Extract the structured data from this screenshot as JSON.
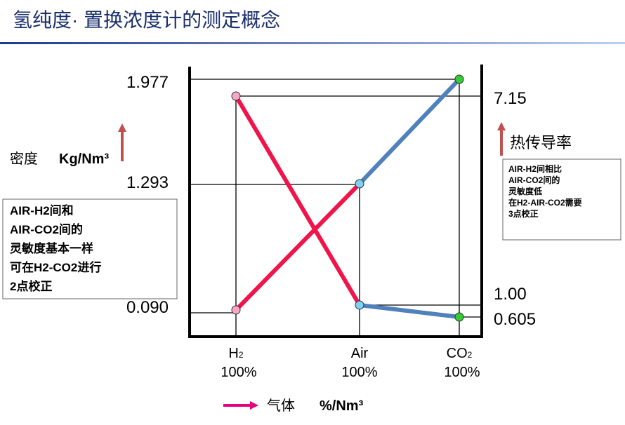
{
  "title": "氢纯度· 置换浓度计的测定概念",
  "left_axis": {
    "label": "密度",
    "unit": "Kg/Nm³",
    "ticks": [
      "1.977",
      "1.293",
      "0.090"
    ]
  },
  "right_axis": {
    "label": "热传导率",
    "ticks": [
      "7.15",
      "1.00",
      "0.605"
    ]
  },
  "categories": [
    {
      "name": "H",
      "sub": "2",
      "amount": "100%"
    },
    {
      "name": "Air",
      "sub": "",
      "amount": "100%"
    },
    {
      "name": "CO",
      "sub": "2",
      "amount": "100%"
    }
  ],
  "left_note": [
    "AIR-H2间和",
    "AIR-CO2间的",
    "灵敏度基本一样",
    "可在H2-CO2进行",
    "2点校正"
  ],
  "right_note": [
    "AIR-H2间相比",
    "AIR-CO2间的",
    "灵敏度低",
    "在H2-AIR-CO2需要",
    "3点校正"
  ],
  "legend": {
    "label": "气体",
    "unit": "%/Nm³"
  }
}
